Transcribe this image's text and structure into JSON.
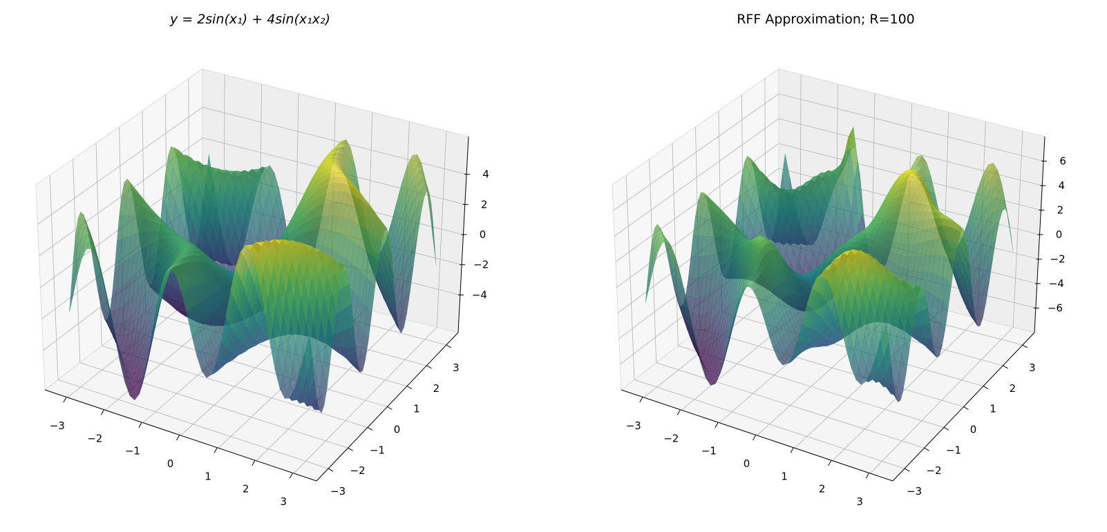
{
  "chart_data": [
    {
      "type": "surface3d",
      "title": "y = 2sin(x₁) + 4sin(x₁x₂)",
      "function": "2*sin(x1) + 4*sin(x1*x2)",
      "x_range": [
        -3.14159,
        3.14159
      ],
      "y_range": [
        -3.14159,
        3.14159
      ],
      "grid_points": 50,
      "colormap": "viridis",
      "alpha": 0.7,
      "xlim": [
        -3.6,
        3.6
      ],
      "ylim": [
        -3.6,
        3.6
      ],
      "zlim": [
        -6.5,
        6.5
      ],
      "x_ticks": [
        "−3",
        "−2",
        "−1",
        "0",
        "1",
        "2",
        "3"
      ],
      "x_tick_values": [
        -3,
        -2,
        -1,
        0,
        1,
        2,
        3
      ],
      "y_ticks": [
        "−3",
        "−2",
        "−1",
        "0",
        "1",
        "2",
        "3"
      ],
      "y_tick_values": [
        -3,
        -2,
        -1,
        0,
        1,
        2,
        3
      ],
      "z_ticks": [
        "−4",
        "−2",
        "0",
        "2",
        "4"
      ],
      "z_tick_values": [
        -4,
        -2,
        0,
        2,
        4
      ],
      "grid": true
    },
    {
      "type": "surface3d",
      "title": "RFF Approximation; R=100",
      "function": "random Fourier feature approximation of 2*sin(x1) + 4*sin(x1*x2), R=100",
      "x_range": [
        -3.14159,
        3.14159
      ],
      "y_range": [
        -3.14159,
        3.14159
      ],
      "grid_points": 50,
      "colormap": "viridis",
      "alpha": 0.7,
      "xlim": [
        -3.6,
        3.6
      ],
      "ylim": [
        -3.6,
        3.6
      ],
      "zlim": [
        -8,
        8
      ],
      "x_ticks": [
        "−3",
        "−2",
        "−1",
        "0",
        "1",
        "2",
        "3"
      ],
      "x_tick_values": [
        -3,
        -2,
        -1,
        0,
        1,
        2,
        3
      ],
      "y_ticks": [
        "−3",
        "−2",
        "−1",
        "0",
        "1",
        "2",
        "3"
      ],
      "y_tick_values": [
        -3,
        -2,
        -1,
        0,
        1,
        2,
        3
      ],
      "z_ticks": [
        "−6",
        "−4",
        "−2",
        "0",
        "2",
        "4",
        "6"
      ],
      "z_tick_values": [
        -6,
        -4,
        -2,
        0,
        2,
        4,
        6
      ],
      "grid": true
    }
  ]
}
